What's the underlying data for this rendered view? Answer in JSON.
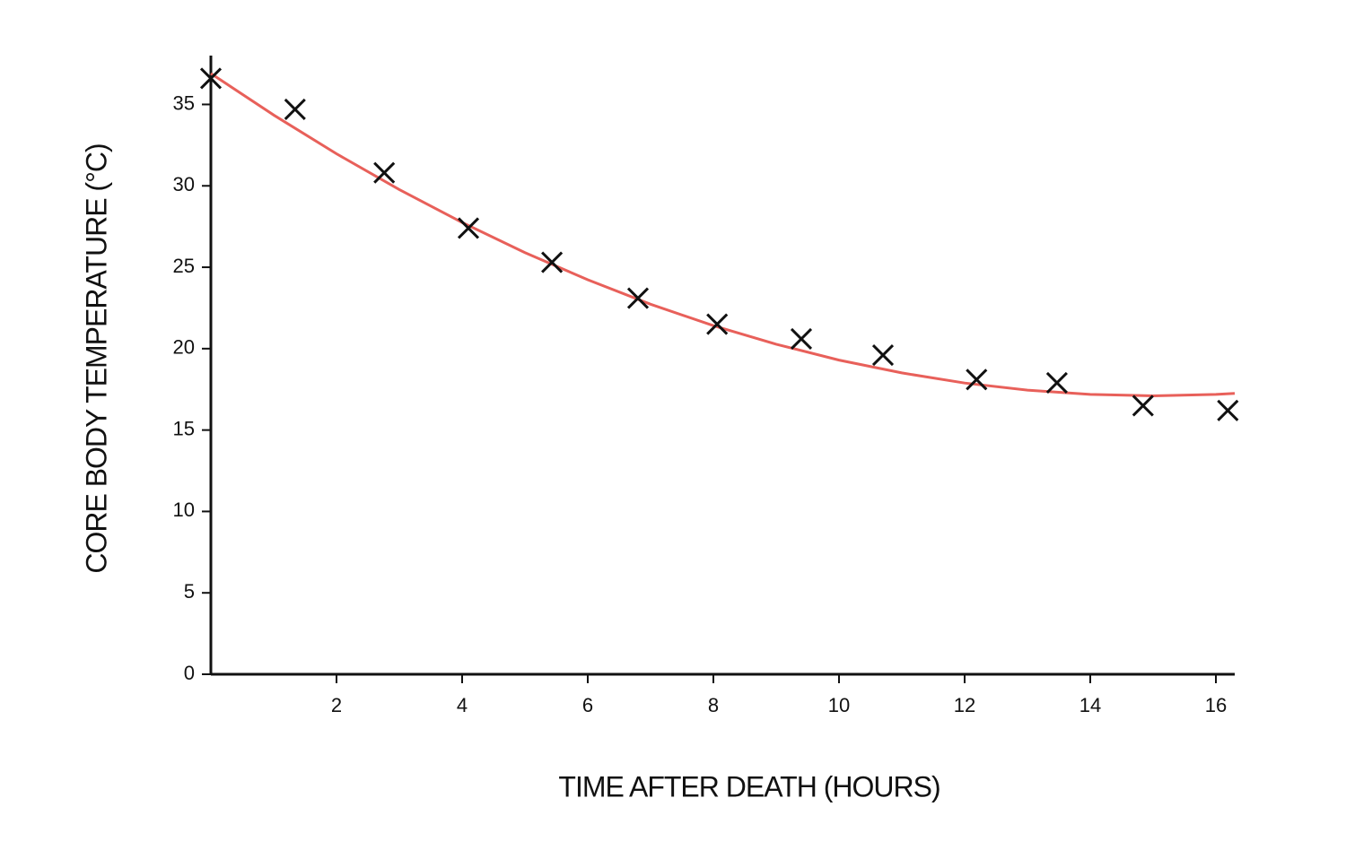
{
  "chart_data": {
    "type": "scatter",
    "x_label": "TIME AFTER DEATH (HOURS)",
    "y_label": "CORE BODY TEMPERATURE (°C)",
    "xlim": [
      0,
      16.3
    ],
    "ylim": [
      0,
      38
    ],
    "xticks": [
      2,
      4,
      6,
      8,
      10,
      12,
      14,
      16
    ],
    "yticks": [
      0,
      5,
      10,
      15,
      20,
      25,
      30,
      35
    ],
    "series": [
      {
        "type": "scatter",
        "color": "#111111",
        "x": [
          0,
          1.34,
          2.76,
          4.1,
          5.43,
          6.8,
          8.06,
          9.4,
          10.7,
          12.19,
          13.47,
          14.84,
          16.19
        ],
        "values": [
          36.6,
          34.7,
          30.8,
          27.4,
          25.3,
          23.1,
          21.5,
          20.6,
          19.6,
          18.1,
          17.9,
          16.5,
          16.2
        ]
      },
      {
        "type": "line",
        "color": "#e8605a",
        "x": [
          0,
          1,
          2,
          3,
          4,
          5,
          6,
          7,
          8,
          9,
          10,
          11,
          12,
          13,
          14,
          15,
          16,
          16.3
        ],
        "values": [
          36.9,
          34.35,
          31.97,
          29.77,
          27.75,
          25.9,
          24.23,
          22.73,
          21.41,
          20.27,
          19.3,
          18.51,
          17.89,
          17.45,
          17.19,
          17.1,
          17.19,
          17.25
        ]
      }
    ]
  }
}
